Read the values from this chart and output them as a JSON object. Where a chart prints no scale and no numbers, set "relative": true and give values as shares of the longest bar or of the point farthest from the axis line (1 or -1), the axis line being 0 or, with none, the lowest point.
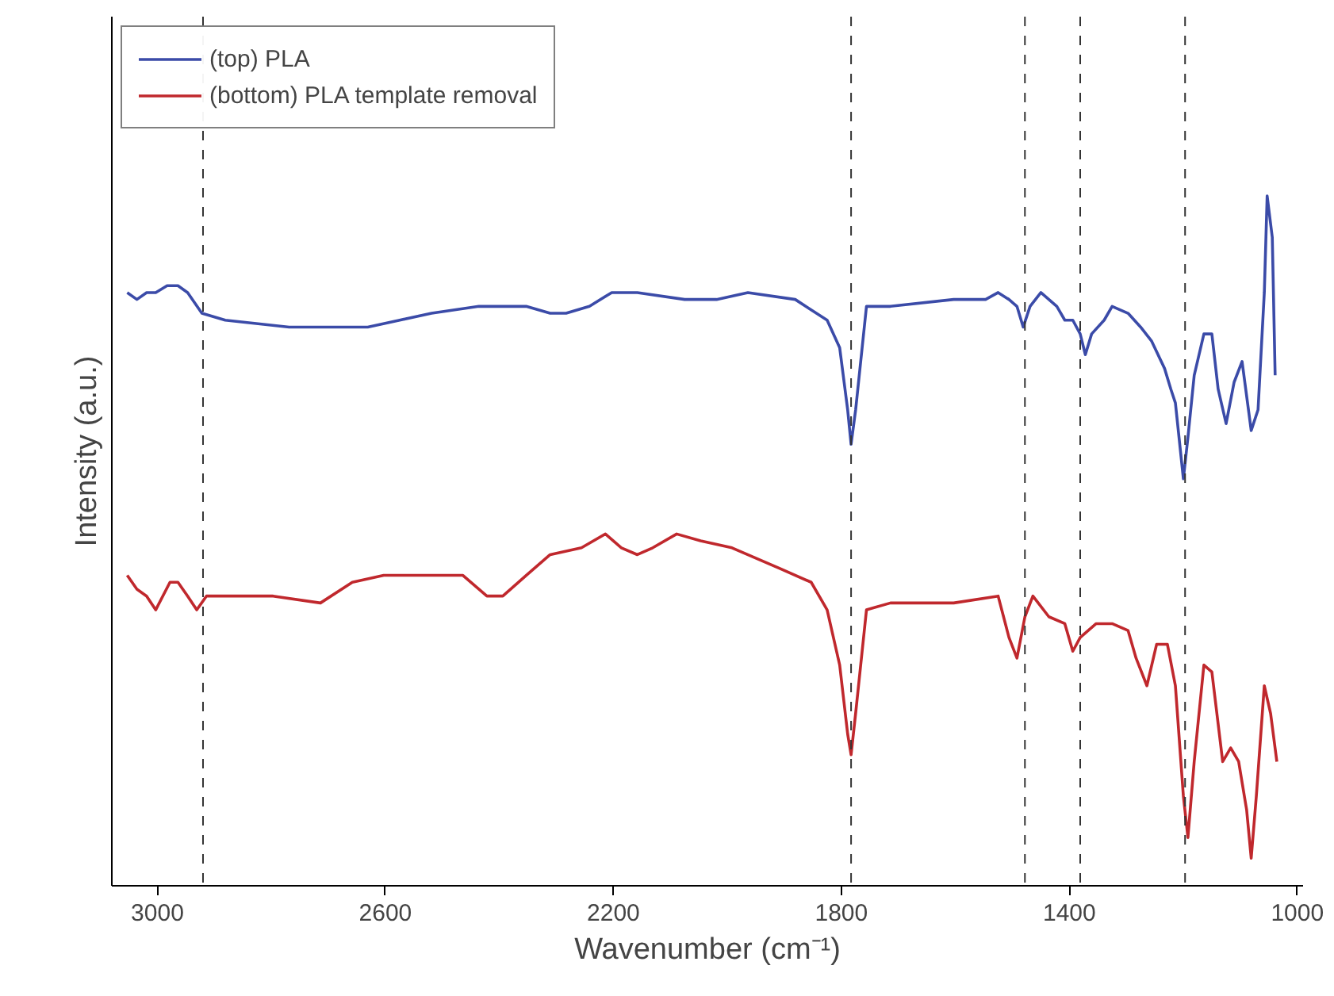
{
  "chart_data": {
    "type": "line",
    "relative": true,
    "xlabel": "Wavenumber (cm⁻¹)",
    "ylabel": "Intensity (a.u.)",
    "xlim": [
      3080,
      990
    ],
    "xticks": [
      3000,
      2600,
      2200,
      1800,
      1400,
      1000
    ],
    "grid": false,
    "legend": "top left",
    "tick_labels": "x",
    "series": [
      {
        "name": "(top) PLA",
        "color": "#3b4ba8",
        "x": [
          3053,
          3036,
          3019,
          3003,
          2983,
          2964,
          2947,
          2922,
          2881,
          2769,
          2714,
          2631,
          2575,
          2519,
          2436,
          2353,
          2311,
          2283,
          2242,
          2203,
          2158,
          2075,
          2019,
          1964,
          1881,
          1825,
          1803,
          1789,
          1783,
          1775,
          1756,
          1714,
          1603,
          1547,
          1525,
          1506,
          1492,
          1481,
          1469,
          1450,
          1422,
          1408,
          1394,
          1381,
          1372,
          1361,
          1339,
          1325,
          1297,
          1275,
          1256,
          1233,
          1222,
          1214,
          1200,
          1192,
          1181,
          1164,
          1150,
          1139,
          1125,
          1111,
          1097,
          1081,
          1069,
          1058,
          1053,
          1044,
          1039
        ],
        "values": [
          0.86,
          0.85,
          0.86,
          0.86,
          0.87,
          0.87,
          0.86,
          0.83,
          0.82,
          0.81,
          0.81,
          0.81,
          0.82,
          0.83,
          0.84,
          0.84,
          0.83,
          0.83,
          0.84,
          0.86,
          0.86,
          0.85,
          0.85,
          0.86,
          0.85,
          0.82,
          0.78,
          0.69,
          0.64,
          0.69,
          0.84,
          0.84,
          0.85,
          0.85,
          0.86,
          0.85,
          0.84,
          0.81,
          0.84,
          0.86,
          0.84,
          0.82,
          0.82,
          0.8,
          0.77,
          0.8,
          0.82,
          0.84,
          0.83,
          0.81,
          0.79,
          0.75,
          0.72,
          0.7,
          0.59,
          0.65,
          0.74,
          0.8,
          0.8,
          0.72,
          0.67,
          0.73,
          0.76,
          0.66,
          0.69,
          0.86,
          1.0,
          0.94,
          0.74
        ]
      },
      {
        "name": "(bottom) PLA template removal",
        "color": "#c0282d",
        "x": [
          3053,
          3036,
          3019,
          3003,
          2978,
          2964,
          2947,
          2931,
          2914,
          2881,
          2797,
          2714,
          2658,
          2603,
          2519,
          2464,
          2422,
          2394,
          2353,
          2311,
          2256,
          2214,
          2186,
          2158,
          2131,
          2089,
          2047,
          1992,
          1908,
          1853,
          1825,
          1803,
          1789,
          1783,
          1775,
          1756,
          1714,
          1603,
          1525,
          1506,
          1492,
          1478,
          1464,
          1436,
          1408,
          1394,
          1381,
          1367,
          1353,
          1325,
          1297,
          1283,
          1264,
          1247,
          1228,
          1214,
          1200,
          1192,
          1181,
          1164,
          1150,
          1131,
          1117,
          1103,
          1089,
          1081,
          1072,
          1058,
          1047,
          1036
        ],
        "values": [
          0.45,
          0.43,
          0.42,
          0.4,
          0.44,
          0.44,
          0.42,
          0.4,
          0.42,
          0.42,
          0.42,
          0.41,
          0.44,
          0.45,
          0.45,
          0.45,
          0.42,
          0.42,
          0.45,
          0.48,
          0.49,
          0.51,
          0.49,
          0.48,
          0.49,
          0.51,
          0.5,
          0.49,
          0.46,
          0.44,
          0.4,
          0.32,
          0.22,
          0.19,
          0.25,
          0.4,
          0.41,
          0.41,
          0.42,
          0.36,
          0.33,
          0.39,
          0.42,
          0.39,
          0.38,
          0.34,
          0.36,
          0.37,
          0.38,
          0.38,
          0.37,
          0.33,
          0.29,
          0.35,
          0.35,
          0.29,
          0.13,
          0.07,
          0.18,
          0.32,
          0.31,
          0.18,
          0.2,
          0.18,
          0.11,
          0.04,
          0.13,
          0.29,
          0.25,
          0.18
        ]
      }
    ],
    "ref_lines": [
      {
        "axis": "x",
        "value": 2920,
        "color": "#333333",
        "line_style": "dashed"
      },
      {
        "axis": "x",
        "value": 1783,
        "color": "#333333",
        "line_style": "dashed"
      },
      {
        "axis": "x",
        "value": 1478,
        "color": "#333333",
        "line_style": "dashed"
      },
      {
        "axis": "x",
        "value": 1381,
        "color": "#333333",
        "line_style": "dashed"
      },
      {
        "axis": "x",
        "value": 1197,
        "color": "#333333",
        "line_style": "dashed"
      }
    ]
  }
}
